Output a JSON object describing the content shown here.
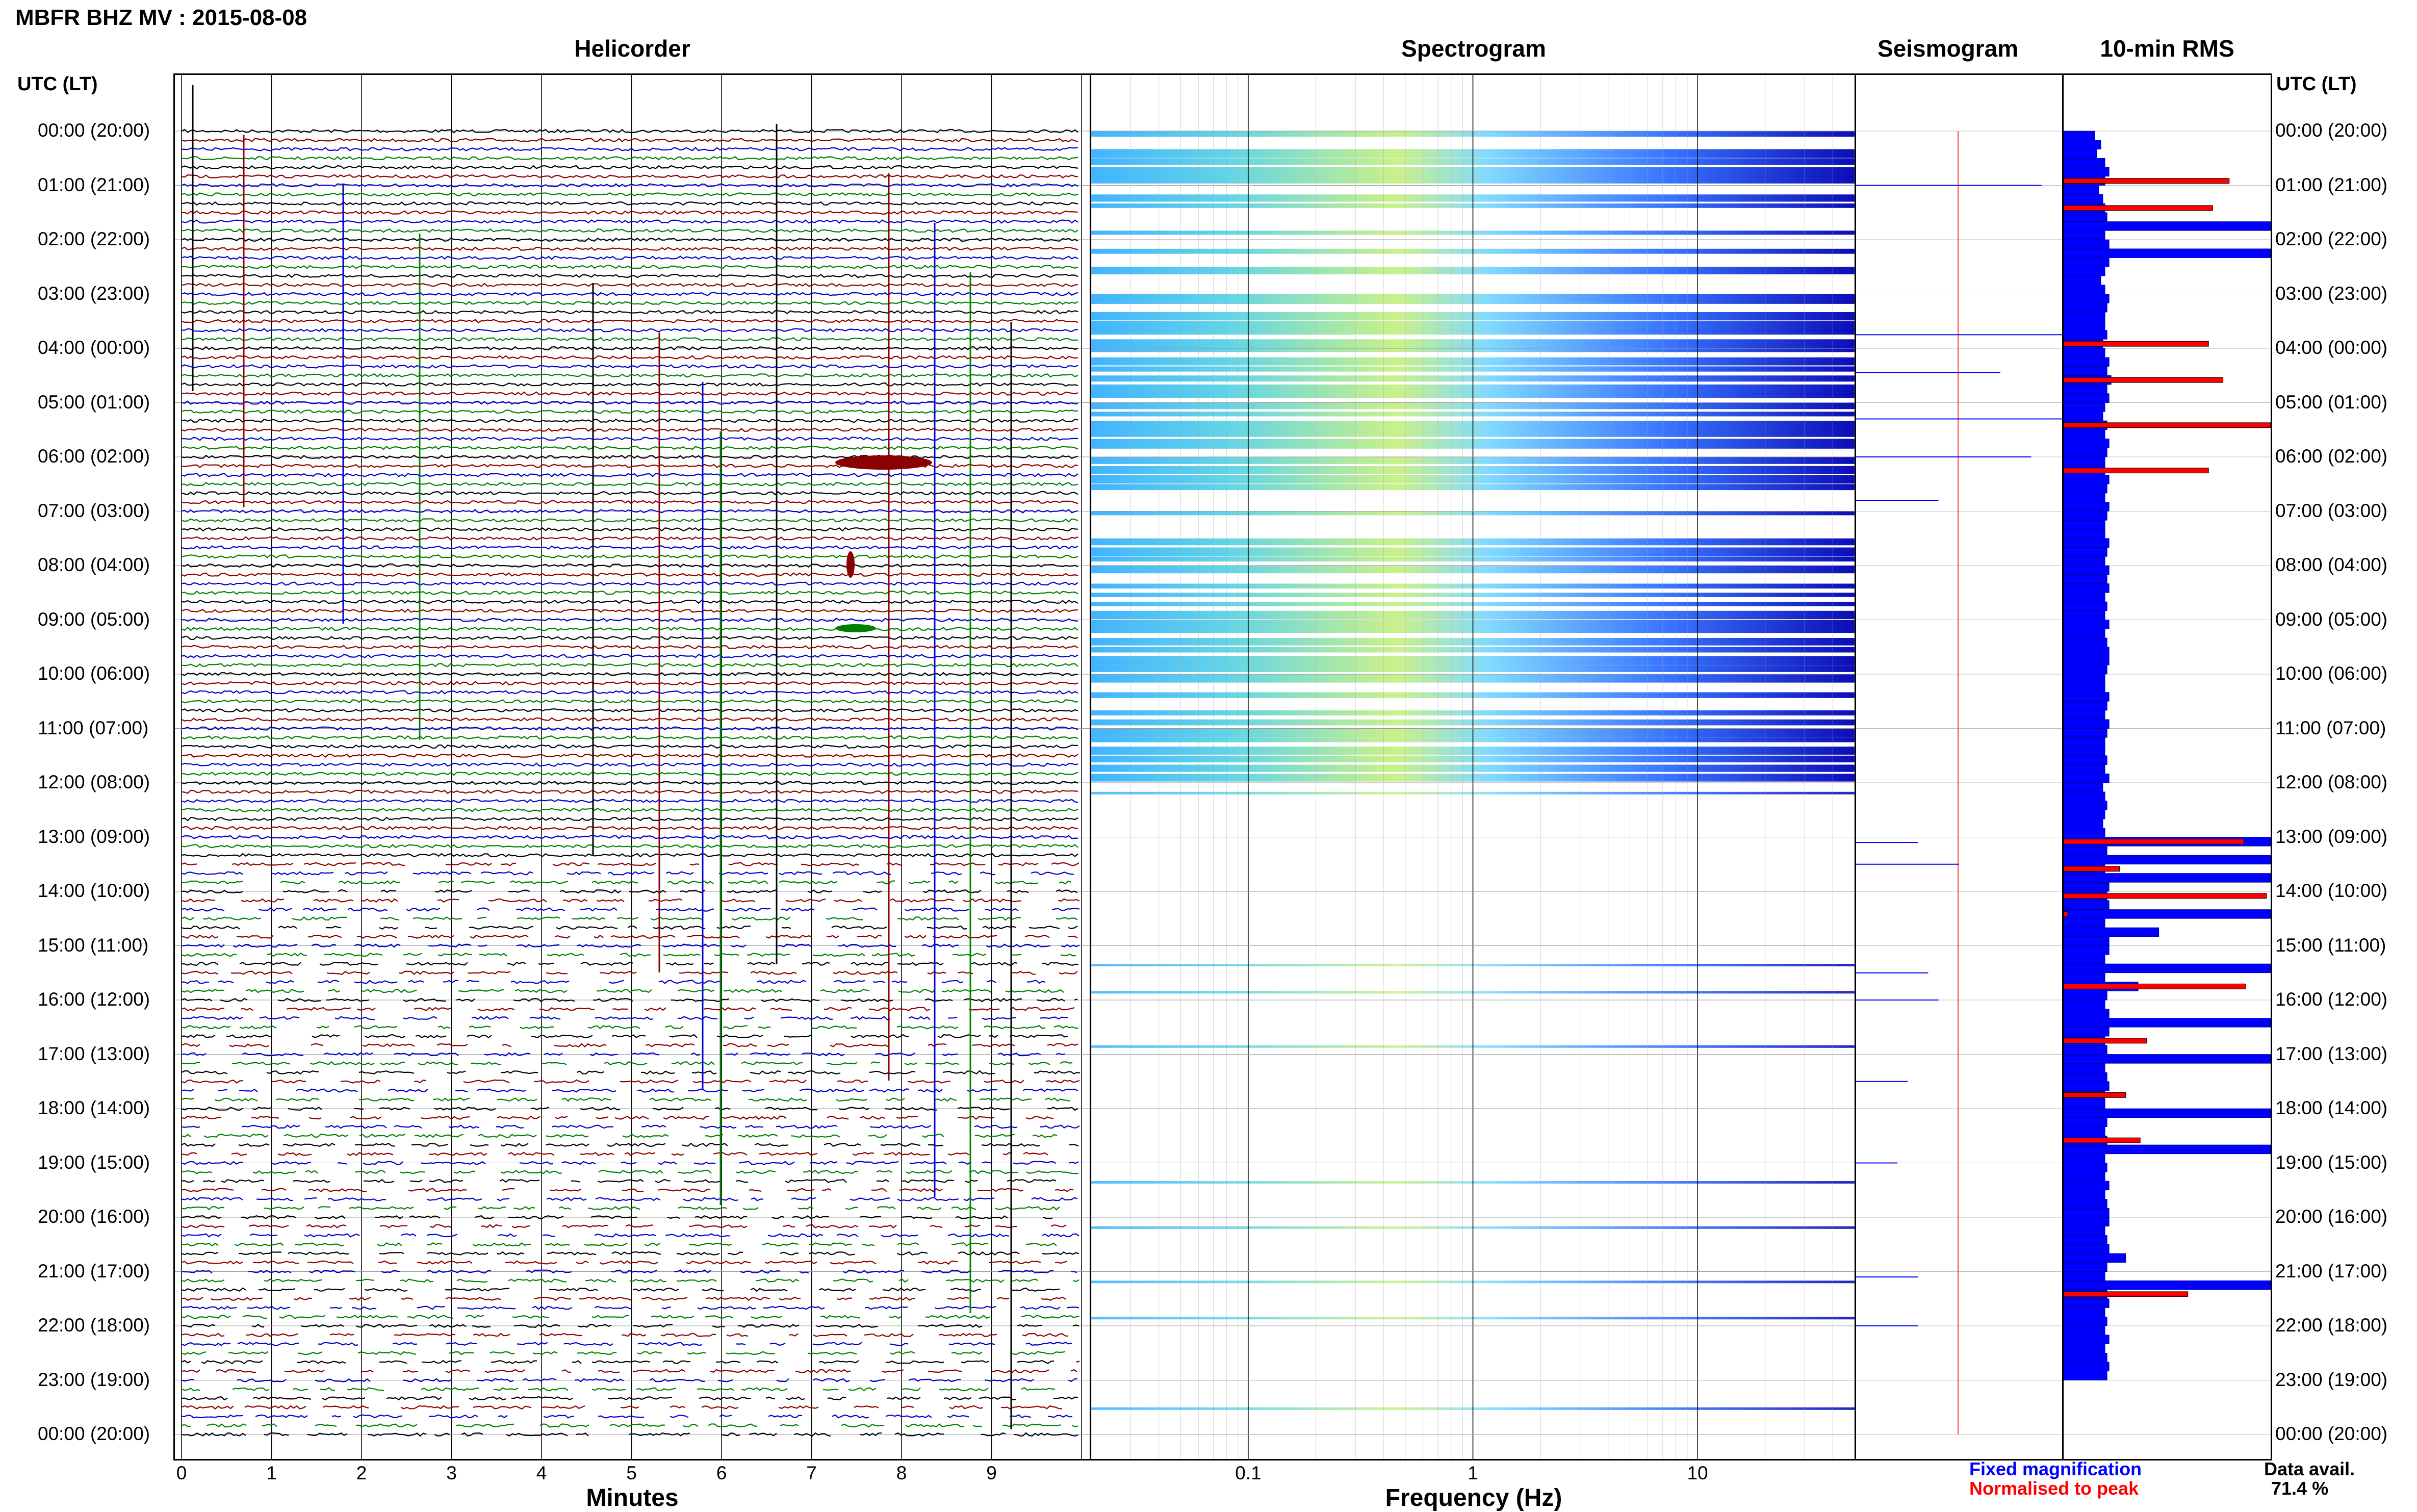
{
  "header": {
    "title": "MBFR BHZ MV : 2015-08-08"
  },
  "panels": {
    "helicorder": "Helicorder",
    "spectrogram": "Spectrogram",
    "seismogram": "Seismogram",
    "rms": "10-min RMS"
  },
  "axis": {
    "time_label_left": "UTC (LT)",
    "time_label_right": "UTC (LT)",
    "minutes_label": "Minutes",
    "frequency_label": "Frequency (Hz)"
  },
  "legend": {
    "fixed": "Fixed magnification",
    "normalised": "Normalised to peak",
    "fixed_color": "#0000ff",
    "normalised_color": "#ff0000"
  },
  "availability": {
    "label": "Data avail.",
    "value": "71.4 %"
  },
  "colors": {
    "trace_cycle": [
      "#000000",
      "#8b0000",
      "#0000cd",
      "#008000"
    ],
    "spectro_low": "#0000a0",
    "spectro_high": "#ffff60"
  },
  "chart_data": [
    {
      "type": "line",
      "name": "helicorder",
      "title": "Helicorder",
      "xlabel": "Minutes",
      "x_ticks": [
        "0",
        "1",
        "2",
        "3",
        "4",
        "5",
        "6",
        "7",
        "8",
        "9"
      ],
      "xlim": [
        0,
        10
      ],
      "y_ticks": [
        "00:00 (20:00)",
        "01:00 (21:00)",
        "02:00 (22:00)",
        "03:00 (23:00)",
        "04:00 (00:00)",
        "05:00 (01:00)",
        "06:00 (02:00)",
        "07:00 (03:00)",
        "08:00 (04:00)",
        "09:00 (05:00)",
        "10:00 (06:00)",
        "11:00 (07:00)",
        "12:00 (08:00)",
        "13:00 (09:00)",
        "14:00 (10:00)",
        "15:00 (11:00)",
        "16:00 (12:00)",
        "17:00 (13:00)",
        "18:00 (14:00)",
        "19:00 (15:00)",
        "20:00 (16:00)",
        "21:00 (17:00)",
        "22:00 (18:00)",
        "23:00 (19:00)",
        "00:00 (20:00)"
      ],
      "lines_per_hour": 6
    },
    {
      "type": "heatmap",
      "name": "spectrogram",
      "title": "Spectrogram",
      "xlabel": "Frequency (Hz)",
      "x_scale": "log",
      "x_ticks": [
        "0.1",
        "1",
        "10"
      ],
      "xlim": [
        0.02,
        50
      ]
    },
    {
      "type": "line",
      "name": "seismogram",
      "title": "Seismogram"
    },
    {
      "type": "bar",
      "name": "rms",
      "title": "10-min RMS",
      "series": [
        {
          "name": "Fixed magnification",
          "color": "#0000ff"
        },
        {
          "name": "Normalised to peak",
          "color": "#ff0000"
        }
      ],
      "fixed_values": [
        0.15,
        0.18,
        0.16,
        0.2,
        0.22,
        0.2,
        0.17,
        0.19,
        0.2,
        0.21,
        1,
        0.2,
        0.22,
        1,
        0.22,
        0.2,
        0.18,
        0.2,
        0.22,
        0.21,
        0.2,
        0.2,
        0.21,
        0.19,
        0.2,
        0.22,
        0.21,
        0.23,
        0.21,
        0.22,
        0.2,
        0.19,
        0.21,
        0.2,
        0.22,
        0.21,
        0.2,
        0.2,
        0.22,
        0.21,
        0.2,
        0.22,
        0.21,
        0.2,
        0.2,
        0.22,
        0.21,
        0.2,
        0.22,
        0.21,
        0.22,
        0.2,
        0.21,
        0.2,
        0.22,
        0.2,
        0.21,
        0.22,
        0.22,
        0.21,
        0.2,
        0.2,
        0.22,
        0.21,
        0.2,
        0.22,
        0.21,
        0.2,
        0.2,
        0.21,
        0.2,
        0.22,
        0.19,
        0.2,
        0.21,
        0.2,
        0.19,
        0.2,
        1,
        0.21,
        1,
        0.2,
        1,
        0.22,
        0.21,
        0.22,
        1,
        0.2,
        0.46,
        0.22,
        0.22,
        0.2,
        1,
        0.2,
        0.36,
        0.21,
        0.2,
        0.22,
        1,
        0.22,
        0.2,
        0.21,
        1,
        0.2,
        0.21,
        0.22,
        0.2,
        0.2,
        1,
        0.21,
        0.2,
        0.21,
        1,
        0.2,
        0.21,
        0.2,
        0.22,
        0.2,
        0.21,
        0.22,
        0.22,
        0.2,
        0.21,
        0.22,
        0.3,
        0.21,
        0.2,
        1,
        0.21,
        0.22,
        0.2,
        0.21,
        0.2,
        0.22,
        0.2,
        0.21,
        0.22,
        0.21
      ],
      "normalised_values": [
        0,
        0,
        0,
        0,
        0,
        0.8,
        0,
        0,
        0.72,
        0,
        0,
        0,
        0,
        0,
        0,
        0,
        0,
        0,
        0,
        0,
        0,
        0,
        0,
        0.7,
        0,
        0,
        0,
        0.77,
        0,
        0,
        0,
        0,
        1,
        0,
        0,
        0,
        0,
        0.7,
        0,
        0,
        0,
        0,
        0,
        0,
        0,
        0,
        0,
        0,
        0,
        0,
        0,
        0,
        0,
        0,
        0,
        0,
        0,
        0,
        0,
        0,
        0,
        0,
        0,
        0,
        0,
        0,
        0,
        0,
        0,
        0,
        0,
        0,
        0,
        0,
        0,
        0,
        0,
        0,
        0.87,
        0,
        0,
        0.27,
        0,
        0,
        0.98,
        0,
        0.02,
        0,
        0,
        0,
        0,
        0,
        0,
        0,
        0.88,
        0,
        0,
        0,
        0,
        0,
        0.4,
        0,
        0,
        0,
        0,
        0,
        0.3,
        0,
        0,
        0,
        0,
        0.37,
        0,
        0,
        0,
        0,
        0,
        0,
        0,
        0,
        0,
        0,
        0,
        0,
        0,
        0,
        0,
        0,
        0.6,
        0,
        0,
        0,
        0,
        0,
        0,
        0,
        0,
        0,
        0
      ]
    }
  ]
}
